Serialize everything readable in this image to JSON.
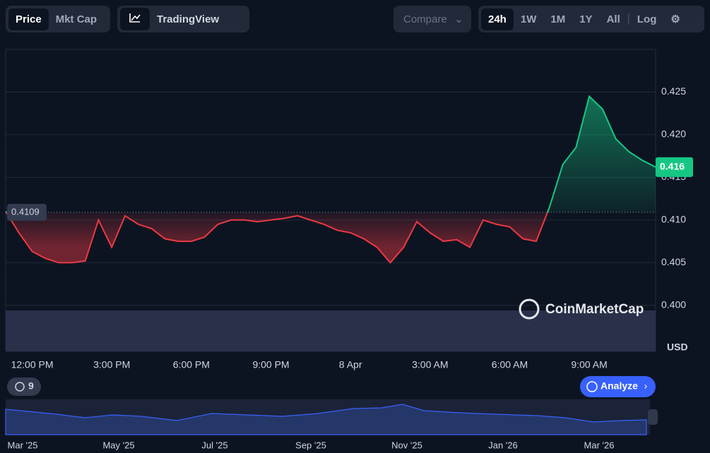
{
  "toolbar": {
    "left": [
      "Price",
      "Mkt Cap"
    ],
    "tradingview": "TradingView",
    "compare": "Compare",
    "ranges": [
      "24h",
      "1W",
      "1M",
      "1Y",
      "All"
    ],
    "log": "Log"
  },
  "chart_data": {
    "type": "line",
    "categories": [
      null,
      null,
      "12:00 PM",
      null,
      null,
      null,
      null,
      null,
      "3:00 PM",
      null,
      null,
      null,
      null,
      null,
      "6:00 PM",
      null,
      null,
      null,
      null,
      null,
      "9:00 PM",
      null,
      null,
      null,
      null,
      null,
      "8 Apr",
      null,
      null,
      null,
      null,
      null,
      "3:00 AM",
      null,
      null,
      null,
      null,
      null,
      "6:00 AM",
      null,
      null,
      null,
      null,
      null,
      "9:00 AM",
      null,
      null,
      null,
      null,
      null
    ],
    "values": [
      0.411,
      0.4085,
      0.4063,
      0.4055,
      0.405,
      0.405,
      0.4052,
      0.41,
      0.4068,
      0.4105,
      0.4095,
      0.409,
      0.4078,
      0.4075,
      0.4075,
      0.408,
      0.4095,
      0.41,
      0.41,
      0.4098,
      0.41,
      0.4102,
      0.4105,
      0.41,
      0.4095,
      0.4088,
      0.4085,
      0.4078,
      0.4068,
      0.405,
      0.4068,
      0.4098,
      0.4085,
      0.4075,
      0.4077,
      0.4068,
      0.41,
      0.4095,
      0.4092,
      0.4078,
      0.4075,
      0.4115,
      0.4165,
      0.4185,
      0.4245,
      0.423,
      0.4195,
      0.418,
      0.417,
      0.4162
    ],
    "baseline": 0.4109,
    "last_label": "0.416",
    "up_color": "#16c784",
    "down_color": "#ea3943",
    "ylim": [
      0.3946,
      0.43
    ],
    "yticks": [
      {
        "value": 0.4,
        "label": "0.400"
      },
      {
        "value": 0.405,
        "label": "0.405"
      },
      {
        "value": 0.41,
        "label": "0.410"
      },
      {
        "value": 0.415,
        "label": "0.415"
      },
      {
        "value": 0.42,
        "label": "0.420"
      },
      {
        "value": 0.425,
        "label": "0.425"
      }
    ],
    "grid": true,
    "currency": "USD",
    "watermark": "CoinMarketCap"
  },
  "history_badge": "9",
  "analyze": "Analyze",
  "overview": {
    "labels": [
      "Mar '25",
      "May '25",
      "Jul '25",
      "Sep '25",
      "Nov '25",
      "Jan '26",
      "Mar '26"
    ]
  }
}
